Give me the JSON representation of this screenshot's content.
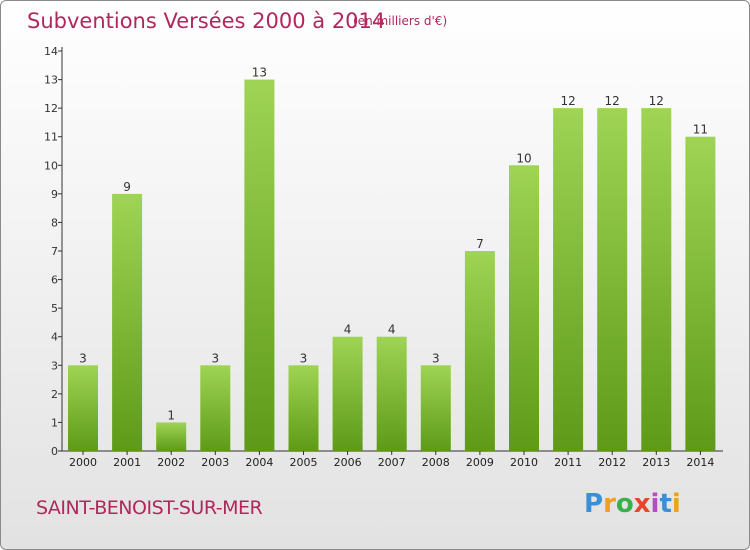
{
  "header": {
    "title": "Subventions Versées 2000 à 2014",
    "subtitle": "(en milliers d'€)"
  },
  "footer": {
    "commune": "SAINT-BENOIST-SUR-MER",
    "logo": [
      "P",
      "r",
      "o",
      "x",
      "i",
      "t",
      "i"
    ]
  },
  "colors": {
    "title": "#b0285b",
    "bar_top": "#9fd454",
    "bar_bottom": "#5e9a18",
    "axis": "#333333"
  },
  "chart_data": {
    "type": "bar",
    "title": "Subventions Versées 2000 à 2014",
    "xlabel": "",
    "ylabel": "",
    "categories": [
      "2000",
      "2001",
      "2002",
      "2003",
      "2004",
      "2005",
      "2006",
      "2007",
      "2008",
      "2009",
      "2010",
      "2011",
      "2012",
      "2013",
      "2014"
    ],
    "values": [
      3,
      9,
      1,
      3,
      13,
      3,
      4,
      4,
      3,
      7,
      10,
      12,
      12,
      12,
      11
    ],
    "ylim": [
      0,
      14
    ],
    "yticks": [
      0,
      1,
      2,
      3,
      4,
      5,
      6,
      7,
      8,
      9,
      10,
      11,
      12,
      13,
      14
    ],
    "grid": false,
    "data_labels": true
  }
}
